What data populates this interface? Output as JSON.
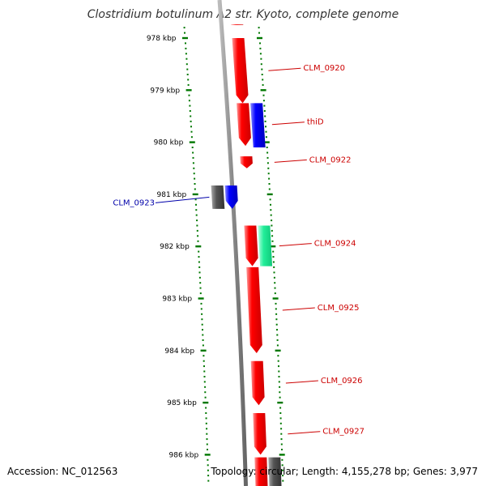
{
  "title": "Clostridium botulinum A2 str. Kyoto, complete genome",
  "footer": {
    "accession": "Accession: NC_012563",
    "summary": "Topology: circular; Length: 4,155,278 bp; Genes: 3,977"
  },
  "colors": {
    "backbone": "#8a8a8a",
    "tick": "#007700",
    "forward_gene": "#ff0000",
    "reverse_gene": "#0000ff",
    "ncrna_gene": "#22ee99",
    "pseudo_gene": "#555555",
    "label_red": "#cc0000",
    "label_blue": "#0000aa"
  },
  "scale": {
    "unit": "kbp",
    "ticks": [
      {
        "pos": 978,
        "label": "978 kbp"
      },
      {
        "pos": 979,
        "label": "979 kbp"
      },
      {
        "pos": 980,
        "label": "980 kbp"
      },
      {
        "pos": 981,
        "label": "981 kbp"
      },
      {
        "pos": 982,
        "label": "982 kbp"
      },
      {
        "pos": 983,
        "label": "983 kbp"
      },
      {
        "pos": 984,
        "label": "984 kbp"
      },
      {
        "pos": 985,
        "label": "985 kbp"
      },
      {
        "pos": 986,
        "label": "986 kbp"
      }
    ]
  },
  "genes": [
    {
      "id": "g-top-red",
      "start": 977.4,
      "end": 977.75,
      "lane": "fwd1",
      "color": "forward_gene",
      "arrow": true
    },
    {
      "id": "g-top-navy",
      "start": 977.4,
      "end": 977.7,
      "lane": "fwd2",
      "color": "reverse_gene",
      "arrow": false
    },
    {
      "id": "CLM_0920",
      "start": 978.0,
      "end": 979.25,
      "lane": "fwd1",
      "color": "forward_gene",
      "arrow": true
    },
    {
      "id": "thiD",
      "start": 979.25,
      "end": 980.07,
      "lane": "fwd1",
      "color": "forward_gene",
      "arrow": true
    },
    {
      "id": "thiD-partner",
      "start": 979.25,
      "end": 980.1,
      "lane": "fwd2",
      "color": "reverse_gene",
      "arrow": false
    },
    {
      "id": "CLM_0922",
      "start": 980.27,
      "end": 980.5,
      "lane": "fwd1",
      "color": "forward_gene",
      "arrow": true
    },
    {
      "id": "CLM_0923-grey",
      "start": 980.83,
      "end": 981.28,
      "lane": "rev1",
      "color": "pseudo_gene",
      "arrow": false
    },
    {
      "id": "CLM_0923",
      "start": 980.83,
      "end": 981.28,
      "lane": "rev2",
      "color": "reverse_gene",
      "arrow": true
    },
    {
      "id": "CLM_0924",
      "start": 981.6,
      "end": 982.38,
      "lane": "fwd1",
      "color": "forward_gene",
      "arrow": true
    },
    {
      "id": "CLM_0924-green",
      "start": 981.6,
      "end": 982.38,
      "lane": "fwd2",
      "color": "ncrna_gene",
      "arrow": false
    },
    {
      "id": "CLM_0925",
      "start": 982.4,
      "end": 984.05,
      "lane": "fwd1",
      "color": "forward_gene",
      "arrow": true
    },
    {
      "id": "CLM_0926",
      "start": 984.2,
      "end": 985.05,
      "lane": "fwd1",
      "color": "forward_gene",
      "arrow": true
    },
    {
      "id": "CLM_0927",
      "start": 985.2,
      "end": 986.0,
      "lane": "fwd1",
      "color": "forward_gene",
      "arrow": true
    },
    {
      "id": "g-bottom-red",
      "start": 986.05,
      "end": 986.6,
      "lane": "fwd1",
      "color": "forward_gene",
      "arrow": false
    },
    {
      "id": "g-bottom-grey",
      "start": 986.05,
      "end": 986.6,
      "lane": "fwd2",
      "color": "pseudo_gene",
      "arrow": false
    }
  ],
  "labels": [
    {
      "text": "CLM_0920",
      "gene": "CLM_0920",
      "side": "right",
      "color": "label_red"
    },
    {
      "text": "thiD",
      "gene": "thiD",
      "side": "right",
      "color": "label_red"
    },
    {
      "text": "CLM_0922",
      "gene": "CLM_0922",
      "side": "right",
      "color": "label_red"
    },
    {
      "text": "CLM_0923",
      "gene": "CLM_0923",
      "side": "left",
      "color": "label_blue"
    },
    {
      "text": "CLM_0924",
      "gene": "CLM_0924",
      "side": "right",
      "color": "label_red"
    },
    {
      "text": "CLM_0925",
      "gene": "CLM_0925",
      "side": "right",
      "color": "label_red"
    },
    {
      "text": "CLM_0926",
      "gene": "CLM_0926",
      "side": "right",
      "color": "label_red"
    },
    {
      "text": "CLM_0927",
      "gene": "CLM_0927",
      "side": "right",
      "color": "label_red"
    }
  ]
}
